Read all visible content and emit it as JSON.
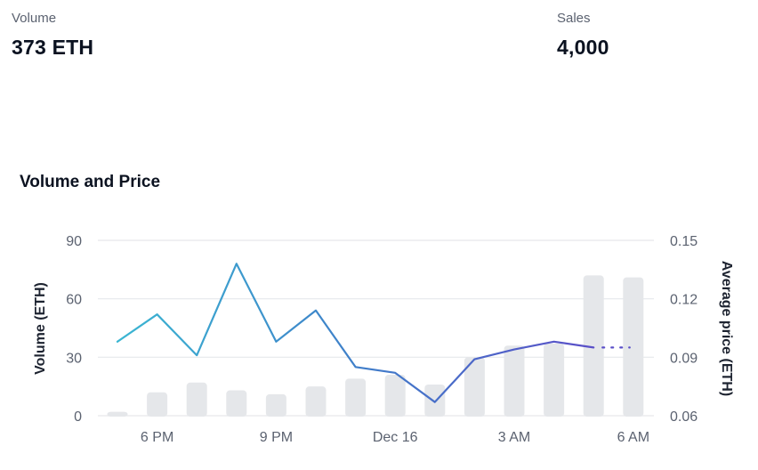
{
  "stats": {
    "volume": {
      "label": "Volume",
      "value": "373 ETH"
    },
    "sales": {
      "label": "Sales",
      "value": "4,000"
    }
  },
  "chart_title": "Volume and Price",
  "chart_data": {
    "type": "bar",
    "title": "Volume and Price",
    "xlabel": "",
    "ylabel": "Volume (ETH)",
    "y2label": "Average price (ETH)",
    "ylim": [
      0,
      90
    ],
    "y2lim": [
      0.06,
      0.15
    ],
    "yticks": [
      "0",
      "30",
      "60",
      "90"
    ],
    "y2ticks": [
      "0.06",
      "0.09",
      "0.12",
      "0.15"
    ],
    "xtick_labels": [
      {
        "label": "6 PM",
        "index": 1
      },
      {
        "label": "9 PM",
        "index": 4
      },
      {
        "label": "Dec 16",
        "index": 7
      },
      {
        "label": "3 AM",
        "index": 10
      },
      {
        "label": "6 AM",
        "index": 13
      }
    ],
    "grid": true,
    "series": [
      {
        "type": "bar",
        "axis": "left",
        "values": [
          2,
          12,
          17,
          13,
          11,
          15,
          19,
          21,
          16,
          30,
          36,
          37,
          72,
          71
        ]
      },
      {
        "type": "line",
        "axis": "right",
        "values": [
          0.098,
          0.112,
          0.091,
          0.138,
          0.098,
          0.114,
          0.085,
          0.082,
          0.067,
          0.089,
          0.094,
          0.098,
          0.095
        ],
        "projected": [
          0.095,
          0.095
        ]
      }
    ],
    "colors": {
      "bar": "#e5e7ea",
      "line_start": "#3bb6d2",
      "line_mid": "#3f7fc9",
      "line_end": "#5a4fc8",
      "grid": "#e6e8eb",
      "tick": "#5b6270"
    }
  }
}
